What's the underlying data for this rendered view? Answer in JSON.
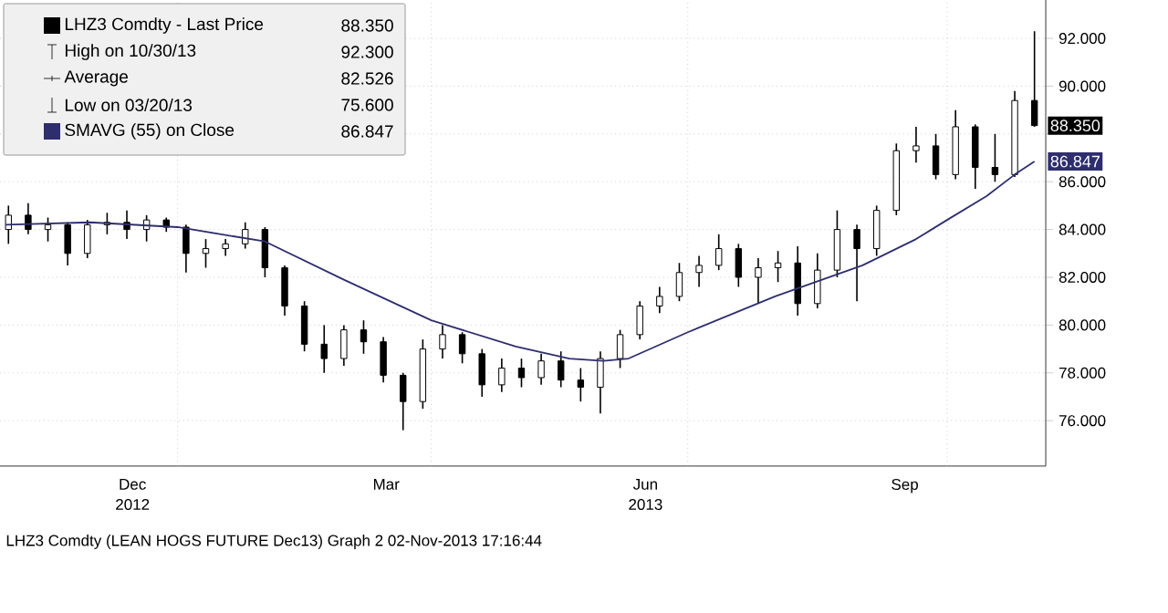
{
  "chart_data": {
    "type": "candlestick",
    "xlim": [
      "2012-10-30",
      "2013-11-05"
    ],
    "ylim": [
      74.1,
      93.8
    ],
    "xticks": [
      {
        "value": "2012-12-16",
        "label": "Dec"
      },
      {
        "value": "2013-03-16",
        "label": "Mar"
      },
      {
        "value": "2013-06-16",
        "label": "Jun"
      },
      {
        "value": "2013-09-16",
        "label": "Sep"
      },
      {
        "value": "2013-01-01",
        "label": null
      },
      {
        "value": "2013-04-01",
        "label": null
      },
      {
        "value": "2013-07-01",
        "label": null
      },
      {
        "value": "2013-10-01",
        "label": null
      }
    ],
    "yticks": [
      {
        "value": 76,
        "label": "76.000"
      },
      {
        "value": 78,
        "label": "78.000"
      },
      {
        "value": 80,
        "label": "80.000"
      },
      {
        "value": 82,
        "label": "82.000"
      },
      {
        "value": 84,
        "label": "84.000"
      },
      {
        "value": 86,
        "label": "86.000"
      },
      {
        "value": 88,
        "label": null
      },
      {
        "value": 90,
        "label": "90.000"
      },
      {
        "value": 92,
        "label": "92.000"
      }
    ],
    "grid": true,
    "legend": "top left",
    "series": [
      {
        "name": "LHZ3 Comdty - Last Price",
        "color": "#000000",
        "x": [
          "2012-11-02",
          "2012-11-09",
          "2012-11-16",
          "2012-11-23",
          "2012-11-30",
          "2012-12-07",
          "2012-12-14",
          "2012-12-21",
          "2012-12-28",
          "2013-01-04",
          "2013-01-11",
          "2013-01-18",
          "2013-01-25",
          "2013-02-01",
          "2013-02-08",
          "2013-02-15",
          "2013-02-22",
          "2013-03-01",
          "2013-03-08",
          "2013-03-15",
          "2013-03-22",
          "2013-03-29",
          "2013-04-05",
          "2013-04-12",
          "2013-04-19",
          "2013-04-26",
          "2013-05-03",
          "2013-05-10",
          "2013-05-17",
          "2013-05-24",
          "2013-05-31",
          "2013-06-07",
          "2013-06-14",
          "2013-06-21",
          "2013-06-28",
          "2013-07-05",
          "2013-07-12",
          "2013-07-19",
          "2013-07-26",
          "2013-08-02",
          "2013-08-09",
          "2013-08-16",
          "2013-08-23",
          "2013-08-30",
          "2013-09-06",
          "2013-09-13",
          "2013-09-20",
          "2013-09-27",
          "2013-10-04",
          "2013-10-11",
          "2013-10-18",
          "2013-10-25",
          "2013-11-01"
        ],
        "ohlc": [
          [
            84.0,
            85.0,
            83.4,
            84.6
          ],
          [
            84.6,
            85.1,
            83.8,
            84.0
          ],
          [
            84.0,
            84.5,
            83.5,
            84.2
          ],
          [
            84.2,
            84.3,
            82.5,
            83.0
          ],
          [
            83.0,
            84.4,
            82.8,
            84.2
          ],
          [
            84.2,
            84.7,
            83.8,
            84.3
          ],
          [
            84.3,
            84.8,
            83.6,
            84.0
          ],
          [
            84.0,
            84.6,
            83.5,
            84.4
          ],
          [
            84.4,
            84.5,
            83.9,
            84.1
          ],
          [
            84.1,
            84.2,
            82.2,
            83.0
          ],
          [
            83.0,
            83.6,
            82.4,
            83.2
          ],
          [
            83.2,
            83.6,
            82.9,
            83.4
          ],
          [
            83.4,
            84.3,
            83.2,
            84.0
          ],
          [
            84.0,
            84.1,
            82.0,
            82.4
          ],
          [
            82.4,
            82.5,
            80.4,
            80.8
          ],
          [
            80.8,
            81.0,
            78.9,
            79.2
          ],
          [
            79.2,
            80.0,
            78.0,
            78.6
          ],
          [
            78.6,
            80.0,
            78.3,
            79.8
          ],
          [
            79.8,
            80.2,
            78.8,
            79.3
          ],
          [
            79.3,
            79.5,
            77.6,
            77.9
          ],
          [
            77.9,
            78.0,
            75.6,
            76.8
          ],
          [
            76.8,
            79.4,
            76.5,
            79.0
          ],
          [
            79.0,
            80.0,
            78.6,
            79.6
          ],
          [
            79.6,
            79.7,
            78.4,
            78.8
          ],
          [
            78.8,
            79.0,
            77.0,
            77.5
          ],
          [
            77.5,
            78.6,
            77.2,
            78.2
          ],
          [
            78.2,
            78.6,
            77.4,
            77.8
          ],
          [
            77.8,
            78.8,
            77.5,
            78.5
          ],
          [
            78.5,
            78.9,
            77.4,
            77.7
          ],
          [
            77.7,
            78.2,
            76.8,
            77.4
          ],
          [
            77.4,
            78.9,
            76.3,
            78.6
          ],
          [
            78.6,
            79.8,
            78.2,
            79.6
          ],
          [
            79.6,
            81.0,
            79.4,
            80.8
          ],
          [
            80.8,
            81.6,
            80.5,
            81.2
          ],
          [
            81.2,
            82.6,
            81.0,
            82.2
          ],
          [
            82.2,
            82.9,
            81.6,
            82.5
          ],
          [
            82.5,
            83.8,
            82.3,
            83.2
          ],
          [
            83.2,
            83.4,
            81.6,
            82.0
          ],
          [
            82.0,
            82.8,
            80.9,
            82.4
          ],
          [
            82.4,
            83.1,
            81.8,
            82.6
          ],
          [
            82.6,
            83.3,
            80.4,
            80.9
          ],
          [
            80.9,
            83.0,
            80.7,
            82.3
          ],
          [
            82.3,
            84.8,
            82.0,
            84.0
          ],
          [
            84.0,
            84.2,
            81.0,
            83.2
          ],
          [
            83.2,
            85.0,
            82.9,
            84.8
          ],
          [
            84.8,
            87.6,
            84.6,
            87.3
          ],
          [
            87.3,
            88.3,
            86.8,
            87.5
          ],
          [
            87.5,
            88.0,
            86.1,
            86.3
          ],
          [
            86.3,
            89.0,
            86.1,
            88.3
          ],
          [
            88.3,
            88.4,
            85.7,
            86.6
          ],
          [
            86.6,
            88.0,
            86.0,
            86.3
          ],
          [
            86.3,
            89.8,
            86.2,
            89.4
          ],
          [
            89.4,
            92.3,
            88.3,
            88.35
          ]
        ]
      },
      {
        "name": "SMAVG (55) on Close",
        "color": "#2e2e6e",
        "type": "line",
        "x": [
          "2012-11-01",
          "2012-12-01",
          "2013-01-01",
          "2013-02-01",
          "2013-03-01",
          "2013-04-01",
          "2013-05-01",
          "2013-05-20",
          "2013-06-01",
          "2013-06-10",
          "2013-07-01",
          "2013-08-01",
          "2013-09-01",
          "2013-09-20",
          "2013-10-01",
          "2013-10-15",
          "2013-10-25",
          "2013-11-01"
        ],
        "values": [
          84.2,
          84.3,
          84.1,
          83.5,
          81.9,
          80.2,
          79.1,
          78.6,
          78.5,
          78.6,
          79.7,
          81.2,
          82.5,
          83.6,
          84.4,
          85.4,
          86.3,
          86.847
        ]
      }
    ],
    "annotations": [
      "88.350",
      "High on 10/30/13",
      "92.300",
      "Average",
      "82.526",
      "Low on 03/20/13",
      "75.600",
      "86.847",
      {
        "text": "88.350",
        "x": "2013-11-01",
        "y": 88.35
      },
      {
        "text": "86.847",
        "x": "2013-11-01",
        "y": 86.847
      },
      "2012",
      "2013",
      "LHZ3 Comdty (LEAN HOGS FUTURE  Dec13) Graph 2  02-Nov-2013 17:16:44"
    ]
  }
}
